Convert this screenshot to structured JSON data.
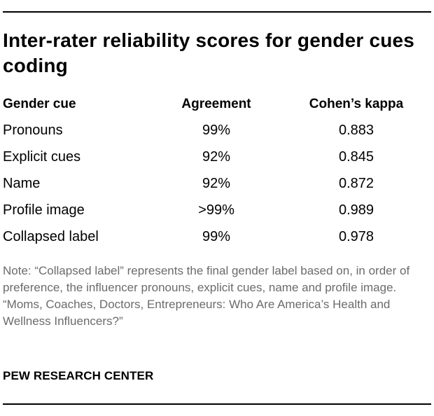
{
  "title": "Inter-rater reliability scores for gender cues coding",
  "table": {
    "headers": [
      "Gender cue",
      "Agreement",
      "Cohen’s kappa"
    ],
    "rows": [
      [
        "Pronouns",
        "99%",
        "0.883"
      ],
      [
        "Explicit cues",
        "92%",
        "0.845"
      ],
      [
        "Name",
        "92%",
        "0.872"
      ],
      [
        "Profile image",
        ">99%",
        "0.989"
      ],
      [
        "Collapsed label",
        "99%",
        "0.978"
      ]
    ]
  },
  "note": {
    "text": "Note: “Collapsed label” represents the final gender label based on, in order of preference, the influencer pronouns, explicit cues, name and profile image.",
    "report": "“Moms, Coaches, Doctors, Entrepreneurs: Who Are America’s Health and Wellness Influencers?”"
  },
  "source": "PEW RESEARCH CENTER"
}
